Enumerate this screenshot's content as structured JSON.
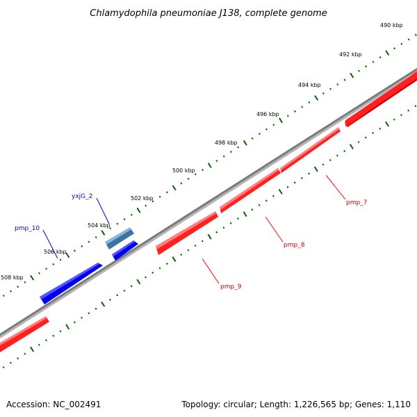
{
  "title": "Chlamydophila pneumoniae J138, complete genome",
  "footer": {
    "accession": "Accession: NC_002491",
    "summary": "Topology: circular; Length: 1,226,565 bp; Genes: 1,110"
  },
  "scale_labels": [
    "490 kbp",
    "492 kbp",
    "494 kbp",
    "496 kbp",
    "498 kbp",
    "500 kbp",
    "502 kbp",
    "504 kbp",
    "506 kbp",
    "508 kbp"
  ],
  "genes": [
    {
      "name": "pmp_7",
      "strand": "reverse",
      "color": "#ff0000"
    },
    {
      "name": "pmp_8",
      "strand": "reverse",
      "color": "#ff0000"
    },
    {
      "name": "pmp_9",
      "strand": "reverse",
      "color": "#ff0000"
    },
    {
      "name": "yxjG_2",
      "strand": "forward",
      "color": "#4682b4"
    },
    {
      "name": "pmp_10",
      "strand": "forward",
      "color": "#0000ff"
    }
  ],
  "colors": {
    "backbone": "#808080",
    "tick_marks": "#006400",
    "forward_gene": "#0000ff",
    "forward_gene_alt": "#4682b4",
    "reverse_gene": "#ff0000"
  }
}
